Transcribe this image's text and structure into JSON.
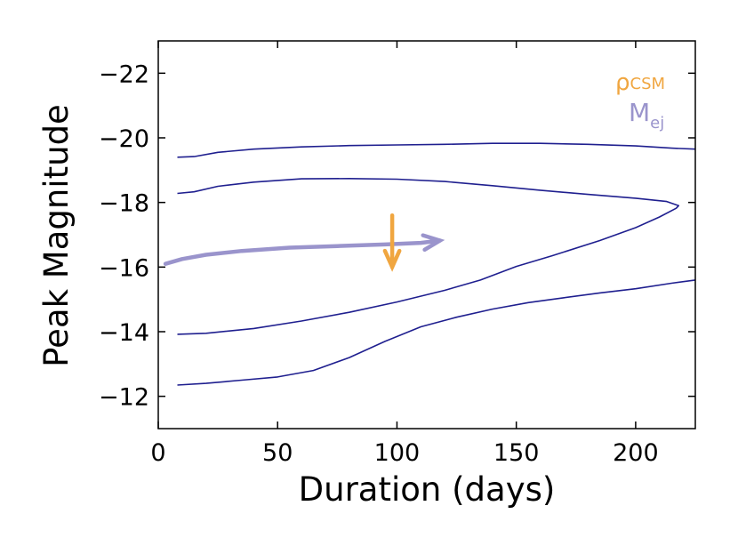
{
  "chart_data": {
    "type": "line",
    "xlabel": "Duration (days)",
    "ylabel": "Peak Magnitude",
    "xlim": [
      0,
      225
    ],
    "ylim": [
      -11,
      -23
    ],
    "y_inverted": true,
    "xticks": [
      0,
      50,
      100,
      150,
      200
    ],
    "xtick_labels": [
      "0",
      "50",
      "100",
      "150",
      "200"
    ],
    "yticks": [
      -12,
      -14,
      -16,
      -18,
      -20,
      -22
    ],
    "ytick_labels": [
      "−12",
      "−14",
      "−16",
      "−18",
      "−20",
      "−22"
    ],
    "contours": [
      {
        "name": "outer-contour",
        "color": "#1f1f8f",
        "points": [
          [
            8,
            -19.4
          ],
          [
            15,
            -19.42
          ],
          [
            25,
            -19.55
          ],
          [
            40,
            -19.65
          ],
          [
            60,
            -19.72
          ],
          [
            80,
            -19.76
          ],
          [
            100,
            -19.78
          ],
          [
            120,
            -19.8
          ],
          [
            140,
            -19.83
          ],
          [
            160,
            -19.83
          ],
          [
            180,
            -19.8
          ],
          [
            200,
            -19.75
          ],
          [
            215,
            -19.68
          ],
          [
            225,
            -19.65
          ]
        ]
      },
      {
        "name": "inner-contour",
        "color": "#1f1f8f",
        "points": [
          [
            8,
            -18.28
          ],
          [
            15,
            -18.33
          ],
          [
            25,
            -18.5
          ],
          [
            40,
            -18.63
          ],
          [
            60,
            -18.73
          ],
          [
            80,
            -18.74
          ],
          [
            100,
            -18.72
          ],
          [
            120,
            -18.65
          ],
          [
            140,
            -18.52
          ],
          [
            160,
            -18.38
          ],
          [
            180,
            -18.25
          ],
          [
            200,
            -18.13
          ],
          [
            213,
            -18.03
          ],
          [
            218,
            -17.9
          ],
          [
            217,
            -17.82
          ],
          [
            210,
            -17.55
          ],
          [
            200,
            -17.22
          ],
          [
            185,
            -16.82
          ],
          [
            165,
            -16.35
          ],
          [
            150,
            -16.02
          ],
          [
            135,
            -15.6
          ],
          [
            120,
            -15.28
          ],
          [
            100,
            -14.92
          ],
          [
            80,
            -14.6
          ],
          [
            60,
            -14.33
          ],
          [
            40,
            -14.1
          ],
          [
            20,
            -13.95
          ],
          [
            8,
            -13.92
          ]
        ]
      },
      {
        "name": "lower-contour",
        "color": "#1f1f8f",
        "points": [
          [
            8,
            -12.35
          ],
          [
            20,
            -12.4
          ],
          [
            35,
            -12.5
          ],
          [
            50,
            -12.6
          ],
          [
            65,
            -12.8
          ],
          [
            80,
            -13.2
          ],
          [
            95,
            -13.7
          ],
          [
            110,
            -14.15
          ],
          [
            125,
            -14.45
          ],
          [
            140,
            -14.7
          ],
          [
            155,
            -14.9
          ],
          [
            170,
            -15.05
          ],
          [
            185,
            -15.2
          ],
          [
            200,
            -15.33
          ],
          [
            215,
            -15.5
          ],
          [
            225,
            -15.6
          ]
        ]
      }
    ],
    "arrows": [
      {
        "name": "mej-arrow",
        "color": "#9a94cc",
        "points": [
          [
            3,
            -16.1
          ],
          [
            10,
            -16.25
          ],
          [
            20,
            -16.38
          ],
          [
            35,
            -16.5
          ],
          [
            55,
            -16.6
          ],
          [
            75,
            -16.65
          ],
          [
            95,
            -16.7
          ],
          [
            110,
            -16.75
          ],
          [
            118,
            -16.82
          ]
        ]
      },
      {
        "name": "rhocsm-arrow",
        "color": "#f0a640",
        "points": [
          [
            98,
            -17.6
          ],
          [
            98,
            -16.0
          ]
        ]
      }
    ],
    "legend": {
      "placement": "top-right",
      "entries": [
        {
          "label": "ρ",
          "subscript": "CSM",
          "color": "#f0a640"
        },
        {
          "label": "M",
          "subscript": "ej",
          "color": "#9a94cc"
        }
      ]
    }
  }
}
